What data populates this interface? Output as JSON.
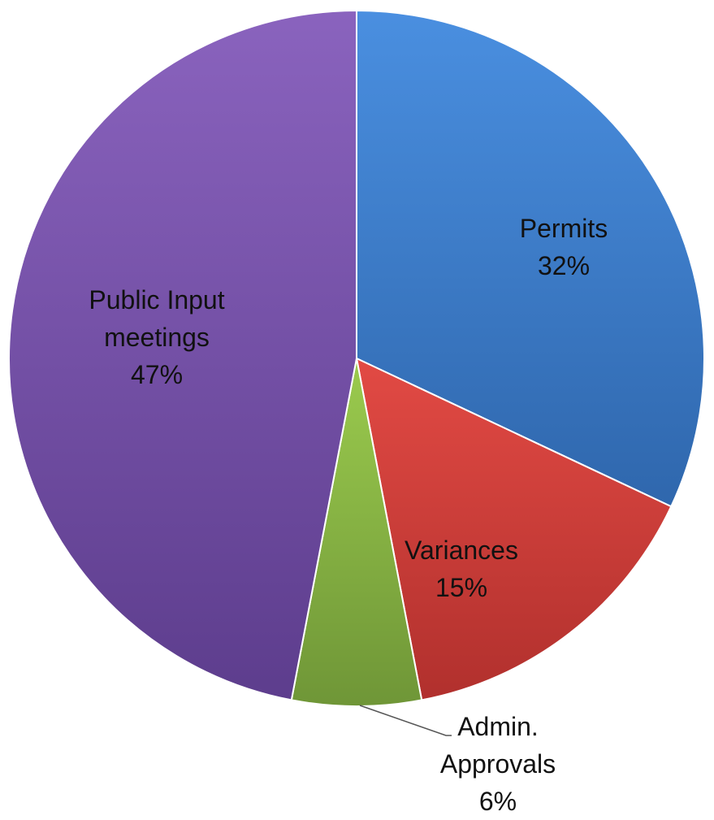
{
  "chart_data": {
    "type": "pie",
    "title": "",
    "start_angle_deg": 0,
    "direction": "clockwise",
    "slices": [
      {
        "label_lines": [
          "Permits",
          "32%"
        ],
        "value": 32,
        "color_light": "#4a8fe0",
        "color_dark": "#2f67ad"
      },
      {
        "label_lines": [
          "Variances",
          "15%"
        ],
        "value": 15,
        "color_light": "#e24a44",
        "color_dark": "#b1302d"
      },
      {
        "label_lines": [
          "Admin.",
          "Approvals",
          "6%"
        ],
        "value": 6,
        "color_light": "#9bcb4e",
        "color_dark": "#6f9637"
      },
      {
        "label_lines": [
          "Public Input",
          "meetings",
          "47%"
        ],
        "value": 47,
        "color_light": "#8a63be",
        "color_dark": "#5d3d8d"
      }
    ]
  }
}
